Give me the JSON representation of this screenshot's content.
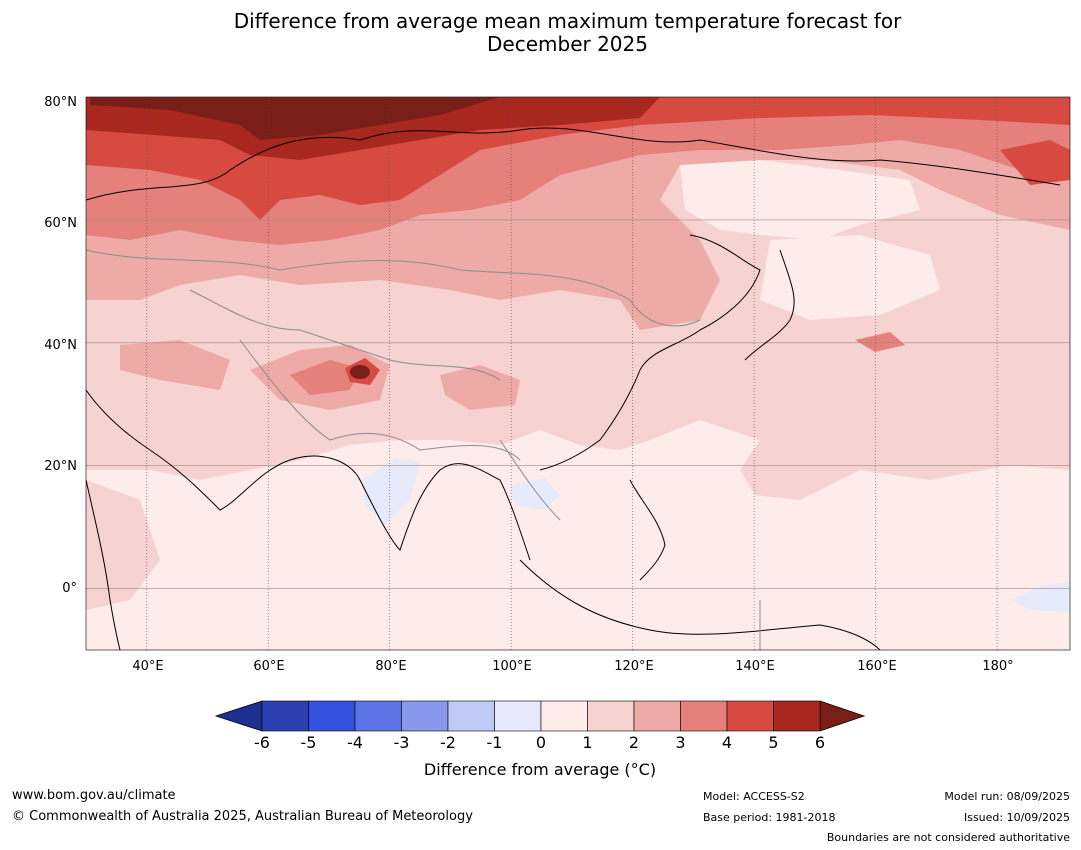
{
  "title": {
    "line1": "Difference from average mean maximum temperature forecast for",
    "line2": "December 2025"
  },
  "map": {
    "lat_labels": [
      "80°N",
      "60°N",
      "40°N",
      "20°N",
      "0°"
    ],
    "lon_labels": [
      "40°E",
      "60°E",
      "80°E",
      "100°E",
      "120°E",
      "140°E",
      "160°E",
      "180°"
    ],
    "lon_range": [
      30,
      192
    ],
    "lat_range": [
      -10,
      80
    ]
  },
  "legend": {
    "label": "Difference from average (°C)",
    "ticks": [
      "-6",
      "-5",
      "-4",
      "-3",
      "-2",
      "-1",
      "0",
      "1",
      "2",
      "3",
      "4",
      "5",
      "6"
    ],
    "colors": [
      "#1f2f8f",
      "#2b3fb0",
      "#3350e0",
      "#5e74e6",
      "#8898ec",
      "#c1c9f5",
      "#e6eafb",
      "#fdecea",
      "#f6d2d0",
      "#eeaaa6",
      "#e6807a",
      "#d64a42",
      "#a8281f",
      "#7a1e18"
    ]
  },
  "footer": {
    "website": "www.bom.gov.au/climate",
    "copyright": "© Commonwealth of Australia 2025, Australian Bureau of Meteorology",
    "model": "Model: ACCESS-S2",
    "base_period": "Base period: 1981-2018",
    "model_run": "Model run: 08/09/2025",
    "issued": "Issued: 10/09/2025",
    "disclaimer": "Boundaries are not considered authoritative"
  }
}
